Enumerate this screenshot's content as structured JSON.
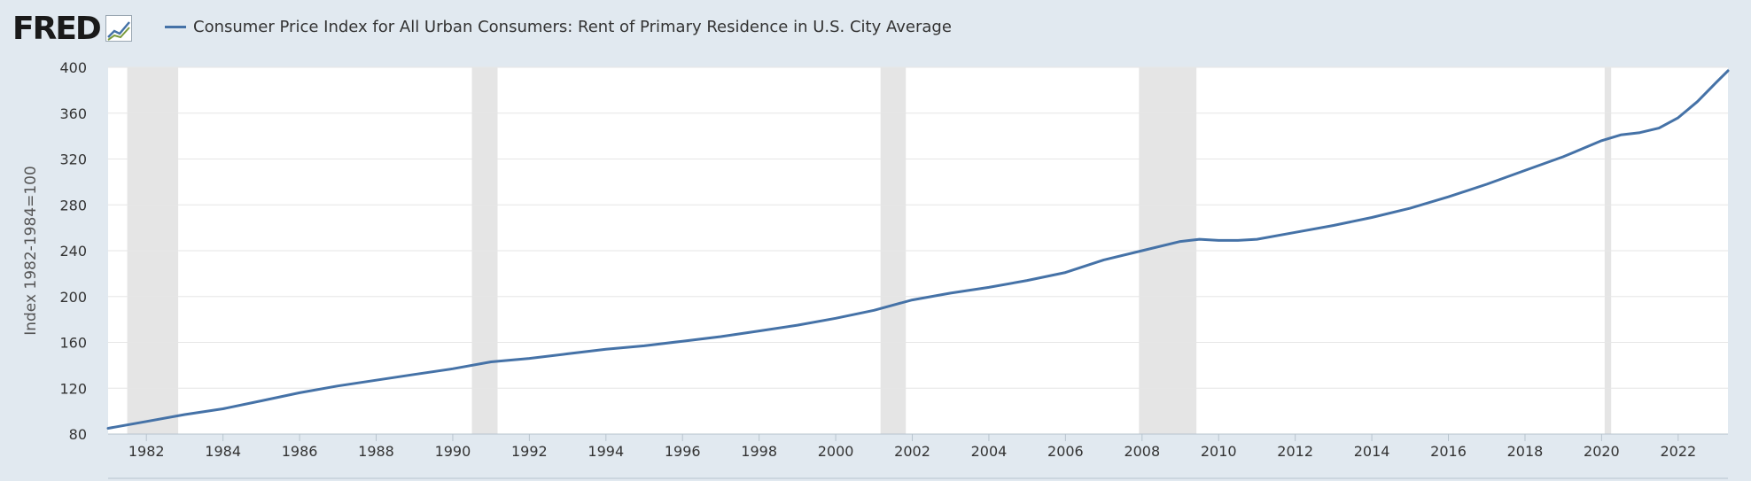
{
  "brand": {
    "name": "FRED"
  },
  "colors": {
    "line": "#4572a7",
    "recession": "#e5e5e5",
    "background": "#e1e9f0",
    "plot": "#ffffff",
    "grid": "#e6e6e6"
  },
  "chart_data": {
    "type": "line",
    "series": [
      {
        "name": "Consumer Price Index for All Urban Consumers: Rent of Primary Residence in U.S. City Average",
        "points": [
          [
            1981.0,
            85
          ],
          [
            1982.0,
            91
          ],
          [
            1983.0,
            97
          ],
          [
            1984.0,
            102
          ],
          [
            1985.0,
            109
          ],
          [
            1986.0,
            116
          ],
          [
            1987.0,
            122
          ],
          [
            1988.0,
            127
          ],
          [
            1989.0,
            132
          ],
          [
            1990.0,
            137
          ],
          [
            1991.0,
            143
          ],
          [
            1992.0,
            146
          ],
          [
            1993.0,
            150
          ],
          [
            1994.0,
            154
          ],
          [
            1995.0,
            157
          ],
          [
            1996.0,
            161
          ],
          [
            1997.0,
            165
          ],
          [
            1998.0,
            170
          ],
          [
            1999.0,
            175
          ],
          [
            2000.0,
            181
          ],
          [
            2001.0,
            188
          ],
          [
            2002.0,
            197
          ],
          [
            2003.0,
            203
          ],
          [
            2004.0,
            208
          ],
          [
            2005.0,
            214
          ],
          [
            2006.0,
            221
          ],
          [
            2007.0,
            232
          ],
          [
            2008.0,
            240
          ],
          [
            2009.0,
            248
          ],
          [
            2009.5,
            250
          ],
          [
            2010.0,
            249
          ],
          [
            2010.5,
            249
          ],
          [
            2011.0,
            250
          ],
          [
            2012.0,
            256
          ],
          [
            2013.0,
            262
          ],
          [
            2014.0,
            269
          ],
          [
            2015.0,
            277
          ],
          [
            2016.0,
            287
          ],
          [
            2017.0,
            298
          ],
          [
            2018.0,
            310
          ],
          [
            2019.0,
            322
          ],
          [
            2020.0,
            336
          ],
          [
            2020.5,
            341
          ],
          [
            2021.0,
            343
          ],
          [
            2021.5,
            347
          ],
          [
            2022.0,
            356
          ],
          [
            2022.5,
            370
          ],
          [
            2023.0,
            387
          ],
          [
            2023.3,
            397
          ]
        ]
      }
    ],
    "xlim": [
      1981.0,
      2023.3
    ],
    "ylim": [
      80,
      400
    ],
    "xticks": [
      {
        "value": 1982,
        "label": "1982"
      },
      {
        "value": 1984,
        "label": "1984"
      },
      {
        "value": 1986,
        "label": "1986"
      },
      {
        "value": 1988,
        "label": "1988"
      },
      {
        "value": 1990,
        "label": "1990"
      },
      {
        "value": 1992,
        "label": "1992"
      },
      {
        "value": 1994,
        "label": "1994"
      },
      {
        "value": 1996,
        "label": "1996"
      },
      {
        "value": 1998,
        "label": "1998"
      },
      {
        "value": 2000,
        "label": "2000"
      },
      {
        "value": 2002,
        "label": "2002"
      },
      {
        "value": 2004,
        "label": "2004"
      },
      {
        "value": 2006,
        "label": "2006"
      },
      {
        "value": 2008,
        "label": "2008"
      },
      {
        "value": 2010,
        "label": "2010"
      },
      {
        "value": 2012,
        "label": "2012"
      },
      {
        "value": 2014,
        "label": "2014"
      },
      {
        "value": 2016,
        "label": "2016"
      },
      {
        "value": 2018,
        "label": "2018"
      },
      {
        "value": 2020,
        "label": "2020"
      },
      {
        "value": 2022,
        "label": "2022"
      }
    ],
    "yticks": [
      {
        "value": 80,
        "label": "80"
      },
      {
        "value": 120,
        "label": "120"
      },
      {
        "value": 160,
        "label": "160"
      },
      {
        "value": 200,
        "label": "200"
      },
      {
        "value": 240,
        "label": "240"
      },
      {
        "value": 280,
        "label": "280"
      },
      {
        "value": 320,
        "label": "320"
      },
      {
        "value": 360,
        "label": "360"
      },
      {
        "value": 400,
        "label": "400"
      }
    ],
    "ylabel": "Index 1982-1984=100",
    "xlabel": "",
    "grid": true,
    "legend": "top-left",
    "recessions": [
      [
        1981.5,
        1982.83
      ],
      [
        1990.5,
        1991.17
      ],
      [
        2001.17,
        2001.83
      ],
      [
        2007.92,
        2009.42
      ],
      [
        2020.08,
        2020.25
      ]
    ]
  }
}
